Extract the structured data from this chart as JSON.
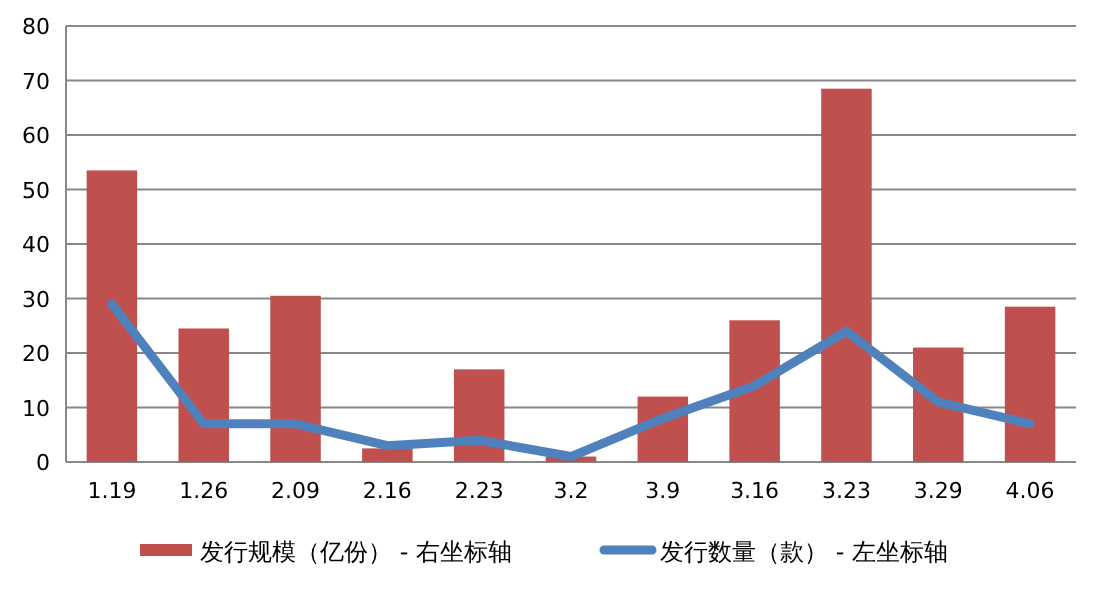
{
  "chart_data": {
    "type": "bar",
    "categories": [
      "1.19",
      "1.26",
      "2.09",
      "2.16",
      "2.23",
      "3.2",
      "3.9",
      "3.16",
      "3.23",
      "3.29",
      "4.06"
    ],
    "series": [
      {
        "name": "发行规模（亿份） - 右坐标轴",
        "color": "#c0504d",
        "values": [
          53.5,
          24.5,
          30.5,
          2.5,
          17,
          1,
          12,
          26,
          68.5,
          21,
          28.5
        ]
      },
      {
        "name": "发行数量（款） - 左坐标轴",
        "type": "line",
        "color": "#4f81bd",
        "values": [
          29,
          7,
          7,
          3,
          4,
          1,
          8,
          14,
          24,
          11,
          7
        ]
      }
    ],
    "ylim": [
      0,
      80
    ],
    "yticks": [
      0,
      10,
      20,
      30,
      40,
      50,
      60,
      70,
      80
    ],
    "grid": "y",
    "legend": "bottom"
  }
}
